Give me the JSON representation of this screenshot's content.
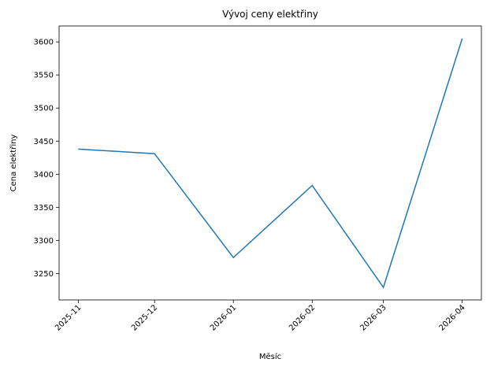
{
  "chart_data": {
    "type": "line",
    "title": "Vývoj ceny elektřiny",
    "xlabel": "Měsíc",
    "ylabel": "Cena elektřiny",
    "x": [
      "2025-11",
      "2025-12",
      "2026-01",
      "2026-02",
      "2026-03",
      "2026-04"
    ],
    "series": [
      {
        "name": "Cena elektřiny",
        "color": "#1f77b4",
        "values": [
          3438,
          3431,
          3274,
          3383,
          3229,
          3605
        ]
      }
    ],
    "ylim": [
      3210,
      3624
    ],
    "yticks": [
      3250,
      3300,
      3350,
      3400,
      3450,
      3500,
      3550,
      3600
    ],
    "grid": false
  }
}
